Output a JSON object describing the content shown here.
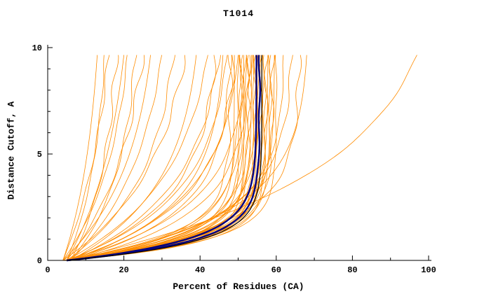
{
  "chart_data": {
    "type": "line",
    "title": "T1014",
    "xlabel": "Percent of Residues (CA)",
    "ylabel": "Distance Cutoff, A",
    "xlim": [
      0,
      100
    ],
    "ylim": [
      0,
      10
    ],
    "x_ticks": [
      0,
      20,
      40,
      60,
      80,
      100
    ],
    "x_minor_step": 10,
    "y_ticks": [
      0,
      5,
      10
    ],
    "y_minor_step": 1,
    "y_top": 9.65,
    "grid": false,
    "legend": "none",
    "colors": {
      "model": "#FF8C00",
      "highlight": "#000080",
      "secondary_highlight": "#000000",
      "axis": "#000000",
      "background": "#FFFFFF"
    },
    "curve_param_format": [
      "x_at_y0_percent",
      "x_at_ytop_percent",
      "knee_sharpness"
    ],
    "model_curves": [
      [
        4,
        13,
        6
      ],
      [
        5,
        15,
        5
      ],
      [
        4,
        16,
        7
      ],
      [
        6,
        18,
        4.5
      ],
      [
        5,
        20,
        6
      ],
      [
        4,
        21,
        5
      ],
      [
        6,
        23,
        4
      ],
      [
        5,
        25,
        5.5
      ],
      [
        4,
        27,
        4.5
      ],
      [
        6,
        30,
        5
      ],
      [
        5,
        33,
        4
      ],
      [
        4,
        36,
        4.5
      ],
      [
        6,
        39,
        3.5
      ],
      [
        5,
        42,
        4
      ],
      [
        6,
        45,
        3.5
      ],
      [
        5,
        44,
        2.8
      ],
      [
        6,
        46,
        2.5
      ],
      [
        5,
        47,
        3
      ],
      [
        6,
        48,
        2.2
      ],
      [
        5,
        49,
        2.6
      ],
      [
        6,
        50,
        2.9
      ],
      [
        5,
        52,
        2.4
      ],
      [
        6,
        53,
        2.1
      ],
      [
        4,
        48,
        1.2
      ],
      [
        5,
        49,
        1.0
      ],
      [
        6,
        50,
        1.3
      ],
      [
        4,
        50.5,
        0.9
      ],
      [
        5,
        51,
        1.1
      ],
      [
        6,
        51.5,
        0.8
      ],
      [
        4,
        52,
        1.2
      ],
      [
        5,
        52.5,
        1.0
      ],
      [
        6,
        53,
        0.9
      ],
      [
        4,
        53.5,
        1.1
      ],
      [
        5,
        54,
        0.8
      ],
      [
        6,
        54.3,
        1.2
      ],
      [
        4,
        54.6,
        1.0
      ],
      [
        5,
        55,
        0.9
      ],
      [
        6,
        55.3,
        1.1
      ],
      [
        4,
        55.6,
        0.8
      ],
      [
        5,
        56,
        1.0
      ],
      [
        6,
        56.3,
        0.9
      ],
      [
        4,
        56.6,
        1.1
      ],
      [
        5,
        57,
        0.8
      ],
      [
        6,
        57.4,
        1.0
      ],
      [
        4,
        57.8,
        1.2
      ],
      [
        5,
        58.2,
        0.9
      ],
      [
        6,
        58.6,
        1.1
      ],
      [
        5,
        59,
        1.0
      ],
      [
        6,
        59.5,
        1.3
      ],
      [
        5,
        60,
        0.9
      ],
      [
        4,
        51,
        1.4
      ],
      [
        5,
        53.2,
        1.3
      ],
      [
        6,
        55.8,
        1.4
      ],
      [
        5,
        62,
        1.8
      ],
      [
        6,
        64,
        2.0
      ],
      [
        5,
        66,
        1.6
      ],
      [
        6,
        68,
        2.2
      ],
      [
        5,
        97,
        4.2
      ]
    ],
    "highlight_curves": [
      [
        5,
        54.8,
        1.0
      ],
      [
        5,
        55.6,
        0.9
      ]
    ],
    "secondary_highlight_curves": [
      [
        5,
        56.2,
        0.85
      ]
    ]
  }
}
